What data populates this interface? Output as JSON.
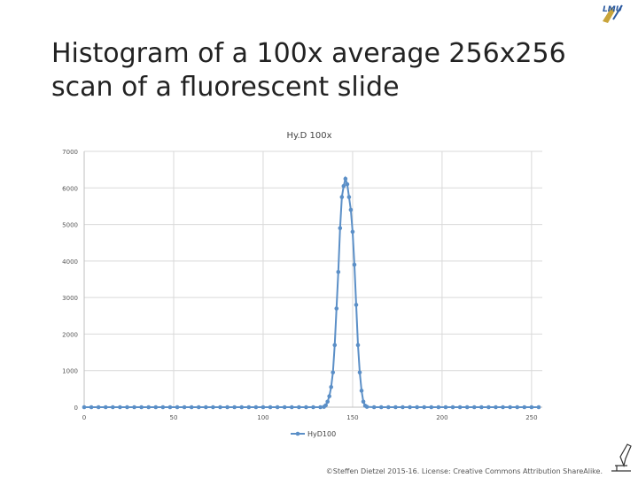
{
  "slide": {
    "title_line1": "Histogram of a 100x average 256x256",
    "title_line2": "scan of a fluorescent slide",
    "footer": "©Steffen Dietzel 2015-16. License: Creative Commons Attribution ShareAlike.",
    "logo_text": "LMU"
  },
  "chart_data": {
    "type": "line",
    "title": "Hy.D 100x",
    "xlabel": "",
    "ylabel": "",
    "xlim": [
      0,
      256
    ],
    "ylim": [
      0,
      7000
    ],
    "x_ticks": [
      0,
      50,
      100,
      150,
      200,
      250
    ],
    "y_ticks": [
      0,
      1000,
      2000,
      3000,
      4000,
      5000,
      6000,
      7000
    ],
    "grid": true,
    "legend": "bottom",
    "series": [
      {
        "name": "HyD100",
        "color": "#5b8fc7",
        "x": [
          0,
          4,
          8,
          12,
          16,
          20,
          24,
          28,
          32,
          36,
          40,
          44,
          48,
          52,
          56,
          60,
          64,
          68,
          72,
          76,
          80,
          84,
          88,
          92,
          96,
          100,
          104,
          108,
          112,
          116,
          120,
          124,
          128,
          132,
          134,
          135,
          136,
          137,
          138,
          139,
          140,
          141,
          142,
          143,
          144,
          145,
          146,
          147,
          148,
          149,
          150,
          151,
          152,
          153,
          154,
          155,
          156,
          157,
          158,
          162,
          166,
          170,
          174,
          178,
          182,
          186,
          190,
          194,
          198,
          202,
          206,
          210,
          214,
          218,
          222,
          226,
          230,
          234,
          238,
          242,
          246,
          250,
          254
        ],
        "values": [
          0,
          0,
          0,
          0,
          0,
          0,
          0,
          0,
          0,
          0,
          0,
          0,
          0,
          0,
          0,
          0,
          0,
          0,
          0,
          0,
          0,
          0,
          0,
          0,
          0,
          0,
          0,
          0,
          0,
          0,
          0,
          0,
          0,
          0,
          10,
          50,
          150,
          300,
          550,
          950,
          1700,
          2700,
          3700,
          4900,
          5750,
          6050,
          6250,
          6100,
          5750,
          5400,
          4800,
          3900,
          2800,
          1700,
          950,
          450,
          150,
          40,
          10,
          0,
          0,
          0,
          0,
          0,
          0,
          0,
          0,
          0,
          0,
          0,
          0,
          0,
          0,
          0,
          0,
          0,
          0,
          0,
          0,
          0,
          0,
          0,
          0
        ]
      }
    ]
  }
}
